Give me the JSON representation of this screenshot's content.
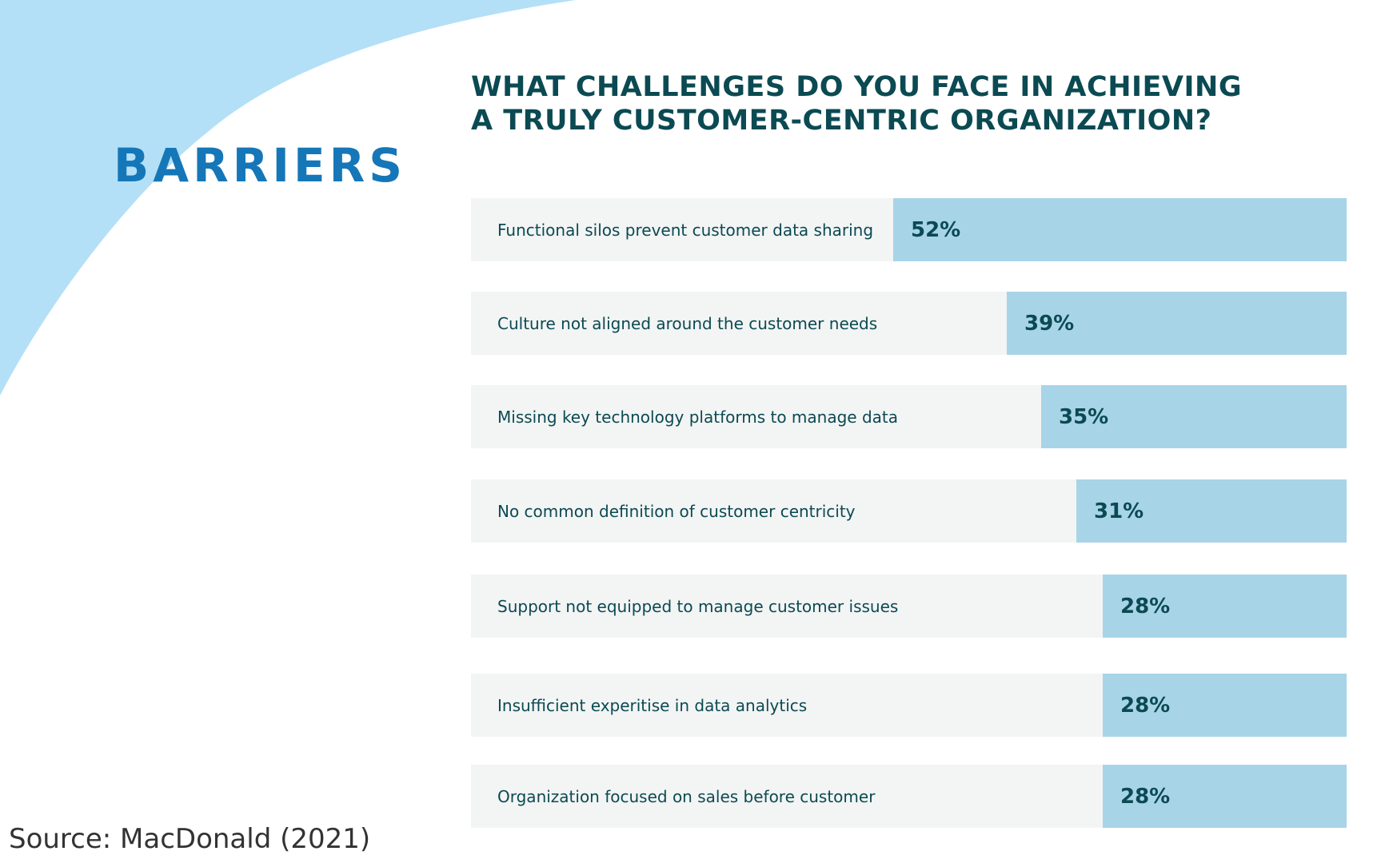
{
  "section_title": "BARRIERS",
  "source": "Source: MacDonald (2021)",
  "colors": {
    "wave": "#b3e0f7",
    "section_title": "#1577b8",
    "text_dark": "#0b4a52",
    "track": "#f3f4f4",
    "bar_fill": "#a8d4e8"
  },
  "chart_data": {
    "type": "bar",
    "orientation": "horizontal",
    "title_lines": [
      "WHAT CHALLENGES DO YOU FACE IN ACHIEVING",
      "A TRULY CUSTOMER-CENTRIC ORGANIZATION?"
    ],
    "categories": [
      "Functional silos prevent customer data sharing",
      "Culture not aligned around the customer needs",
      "Missing key technology platforms to manage data",
      "No common definition of customer centricity",
      "Support not equipped to manage customer issues",
      "Insufficient experitise in data analytics",
      "Organization focused on sales before customer"
    ],
    "values": [
      52,
      39,
      35,
      31,
      28,
      28,
      28
    ],
    "value_labels": [
      "52%",
      "39%",
      "35%",
      "31%",
      "28%",
      "28%",
      "28%"
    ],
    "unit": "%",
    "xlim": [
      0,
      100
    ],
    "grid": false,
    "legend": "none"
  }
}
